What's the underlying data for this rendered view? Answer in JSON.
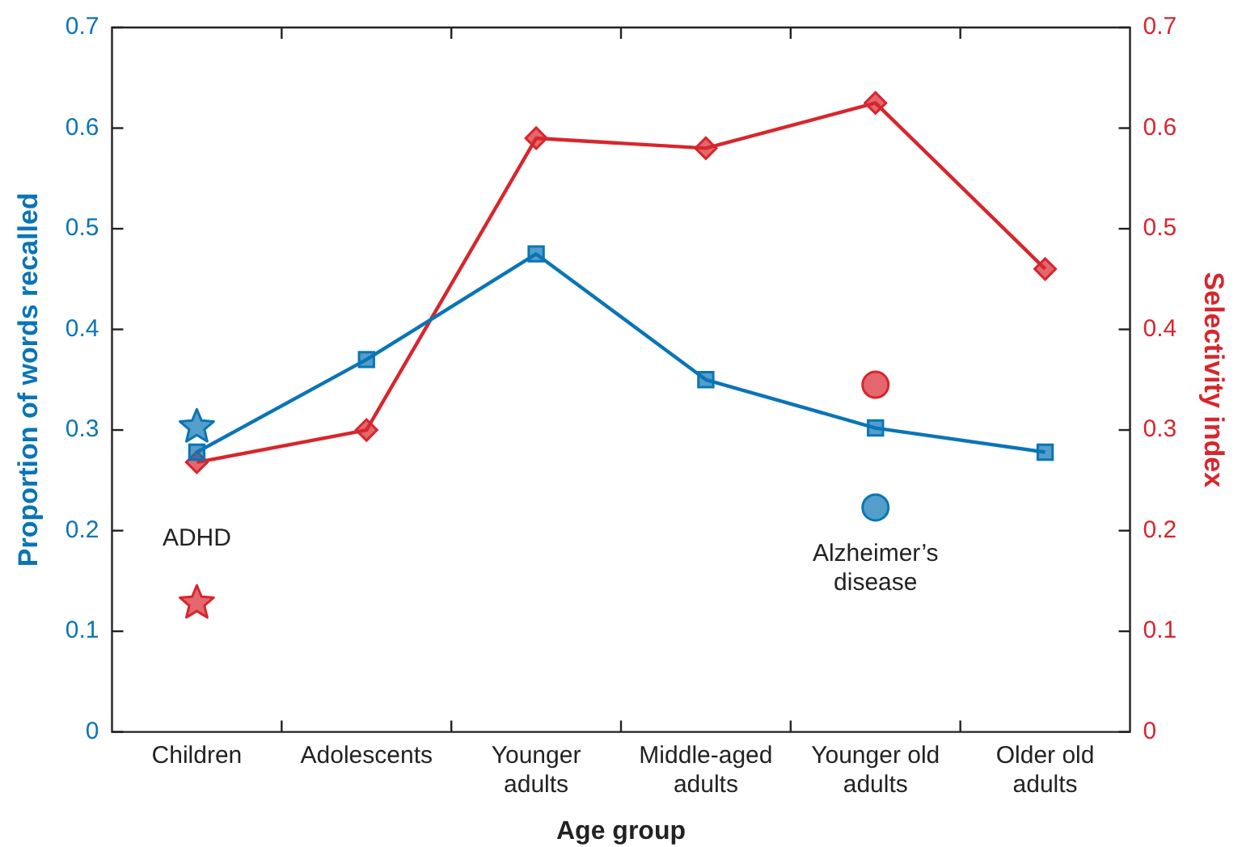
{
  "chart_data": {
    "type": "line",
    "xlabel": "Age group",
    "ylabel": "Proportion of words recalled",
    "y2label": "Selectivity index",
    "categories": [
      "Children",
      "Adolescents",
      "Younger adults",
      "Middle-aged adults",
      "Younger old adults",
      "Older old adults"
    ],
    "ylim": [
      0,
      0.7
    ],
    "yticks": [
      0,
      0.1,
      0.2,
      0.3,
      0.4,
      0.5,
      0.6,
      0.7
    ],
    "y2lim": [
      0,
      0.7
    ],
    "y2ticks": [
      0,
      0.1,
      0.2,
      0.3,
      0.4,
      0.5,
      0.6,
      0.7
    ],
    "grid": false,
    "legend": false,
    "series": [
      {
        "type": "line",
        "color": "#0a75b5",
        "marker": "square",
        "values": [
          0.278,
          0.37,
          0.475,
          0.35,
          0.302,
          0.278
        ]
      },
      {
        "type": "line",
        "color": "#d7262d",
        "marker": "diamond",
        "axis": "y2",
        "values": [
          0.268,
          0.3,
          0.59,
          0.58,
          0.625,
          0.46
        ]
      },
      {
        "type": "scatter",
        "color": "#0a75b5",
        "marker": "star",
        "x": [
          "Children"
        ],
        "values": [
          0.303
        ]
      },
      {
        "type": "scatter",
        "color": "#d7262d",
        "marker": "star",
        "axis": "y2",
        "x": [
          "Children"
        ],
        "values": [
          0.128
        ]
      },
      {
        "type": "scatter",
        "color": "#0a75b5",
        "marker": "circle",
        "x": [
          "Younger old adults"
        ],
        "values": [
          0.223
        ]
      },
      {
        "type": "scatter",
        "color": "#d7262d",
        "marker": "circle",
        "axis": "y2",
        "x": [
          "Younger old adults"
        ],
        "values": [
          0.345
        ]
      }
    ],
    "annotations": [
      "ADHD",
      "Alzheimer’s disease"
    ]
  }
}
